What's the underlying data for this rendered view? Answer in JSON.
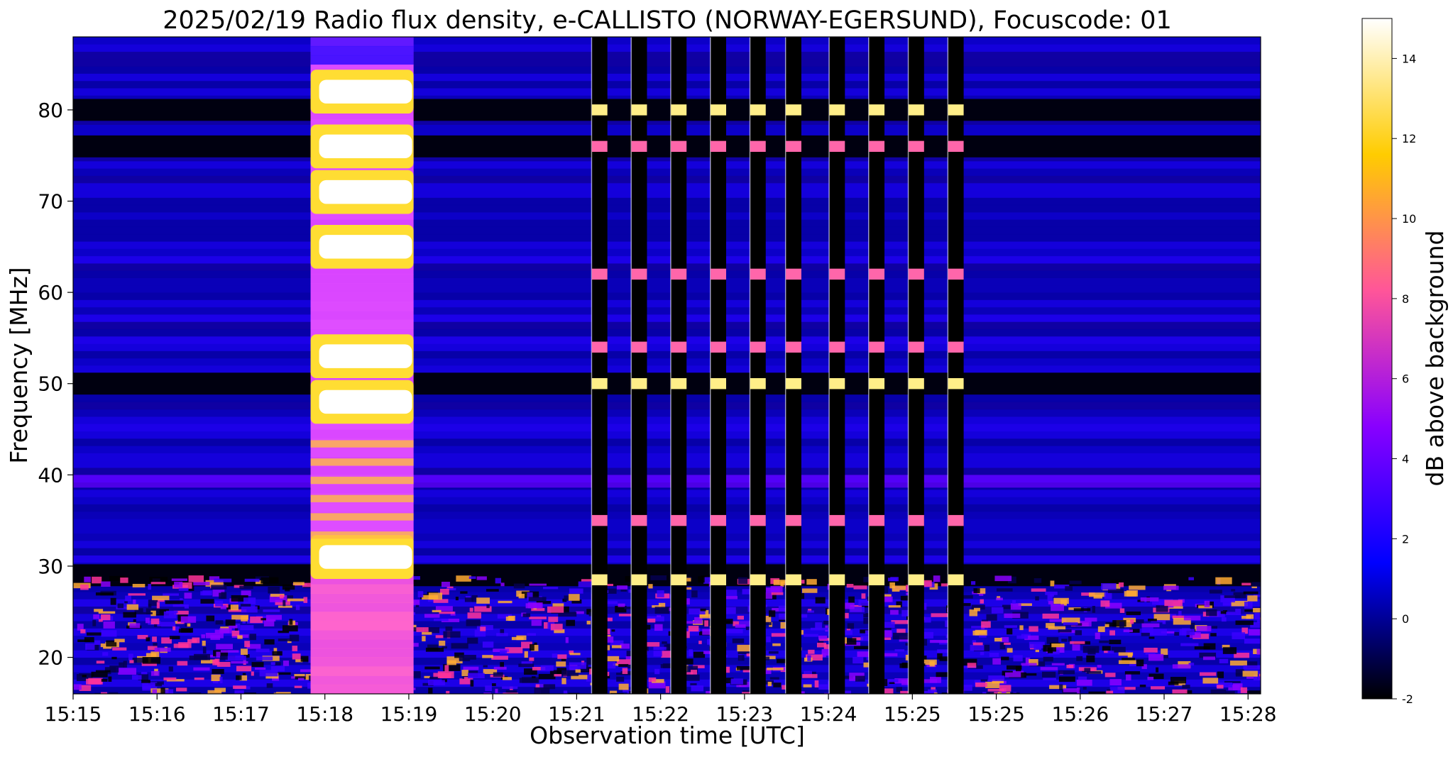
{
  "chart_data": {
    "type": "heatmap",
    "title": "2025/02/19  Radio flux density, e-CALLISTO (NORWAY-EGERSUND), Focuscode: 01",
    "xlabel": "Observation time [UTC]",
    "ylabel": "Frequency [MHz]",
    "x_ticks": [
      "15:15",
      "15:16",
      "15:17",
      "15:18",
      "15:19",
      "15:20",
      "15:21",
      "15:22",
      "15:23",
      "15:24",
      "15:25",
      "15:25",
      "15:26",
      "15:27",
      "15:28"
    ],
    "y_ticks": [
      20,
      30,
      40,
      50,
      60,
      70,
      80
    ],
    "ylim": [
      16,
      88
    ],
    "xlim_minutes": [
      0,
      15
    ],
    "colorbar": {
      "label": "dB above background",
      "range": [
        -2,
        15
      ],
      "ticks": [
        -2,
        0,
        2,
        4,
        6,
        8,
        10,
        12,
        14
      ],
      "colormap": "gnuplot2",
      "stops": [
        "#000000",
        "#0000ff",
        "#8800ff",
        "#ff5599",
        "#ffcc00",
        "#ffffff"
      ]
    },
    "features": {
      "burst": {
        "start_minute": 3.0,
        "end_minute": 4.3,
        "bright_bands_mhz": [
          82,
          76,
          71,
          65,
          53,
          48,
          31
        ]
      },
      "interference_columns_minute": [
        6.65,
        7.15,
        7.65,
        8.15,
        8.65,
        9.1,
        9.65,
        10.15,
        10.65,
        11.15
      ],
      "interference_bands_mhz": [
        80,
        76,
        62,
        54,
        50,
        35,
        28.5
      ],
      "background_dark_bands_mhz": [
        80,
        76,
        50,
        29
      ]
    }
  }
}
